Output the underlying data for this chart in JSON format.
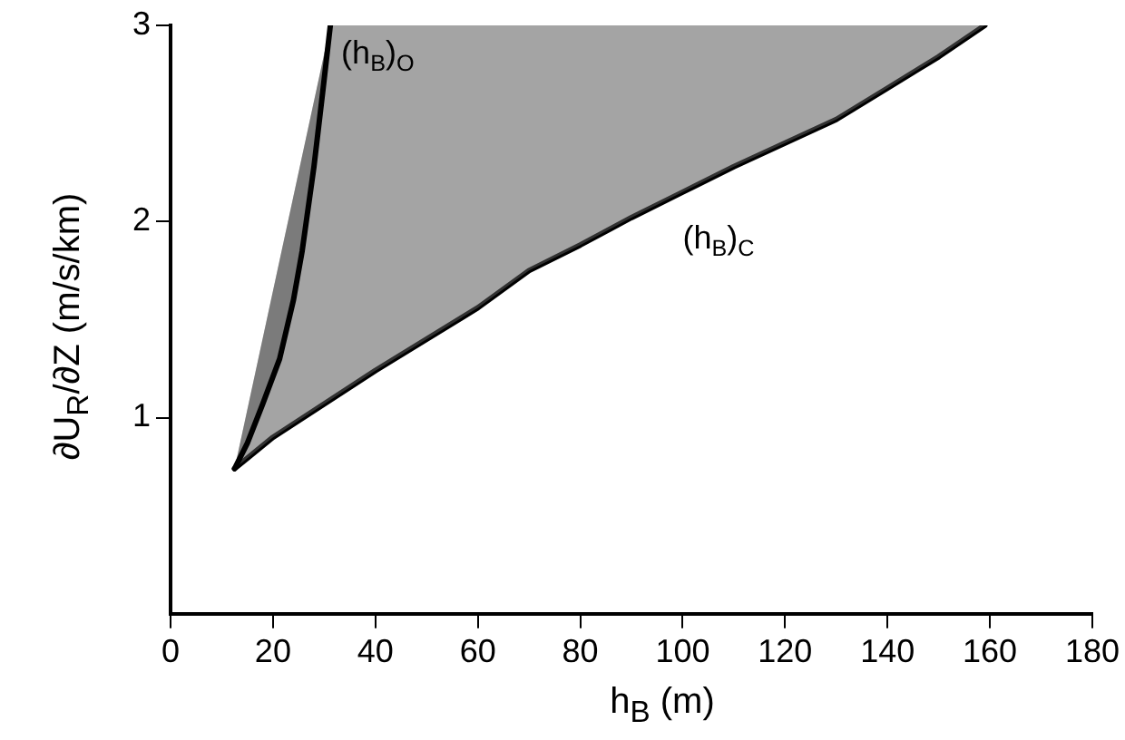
{
  "chart_data": {
    "type": "line",
    "xlabel": "h$_{B}$ (m)",
    "ylabel": "∂U$_{R}$/∂Z (m/s/km)",
    "xlim": [
      0,
      180
    ],
    "xticks": [
      0,
      20,
      40,
      60,
      80,
      100,
      120,
      140,
      160,
      180
    ],
    "ylim": [
      0,
      3
    ],
    "yticks": [
      1,
      2,
      3
    ],
    "grid": false,
    "legend": false,
    "marker": "none",
    "line_style": "solid",
    "series": [
      {
        "type": "area",
        "color": "#000000",
        "x": [
          12.5,
          15,
          18,
          21.3,
          24,
          25.7,
          28,
          29.8,
          31.2
        ],
        "values": [
          0.74,
          0.87,
          1.07,
          1.3,
          1.6,
          1.85,
          2.28,
          2.68,
          3.0
        ]
      },
      {
        "color": "#000000",
        "x": [
          12.5,
          20,
          40,
          60,
          70,
          80,
          90,
          100,
          110,
          120,
          130,
          140,
          150,
          159
        ],
        "values": [
          0.74,
          0.9,
          1.24,
          1.56,
          1.75,
          1.88,
          2.02,
          2.15,
          2.28,
          2.4,
          2.52,
          2.68,
          2.84,
          3.0
        ]
      }
    ],
    "annotations": [
      "(h$_{B}$)$_{O}$",
      "(h$_{B}$)$_{C}$"
    ]
  }
}
